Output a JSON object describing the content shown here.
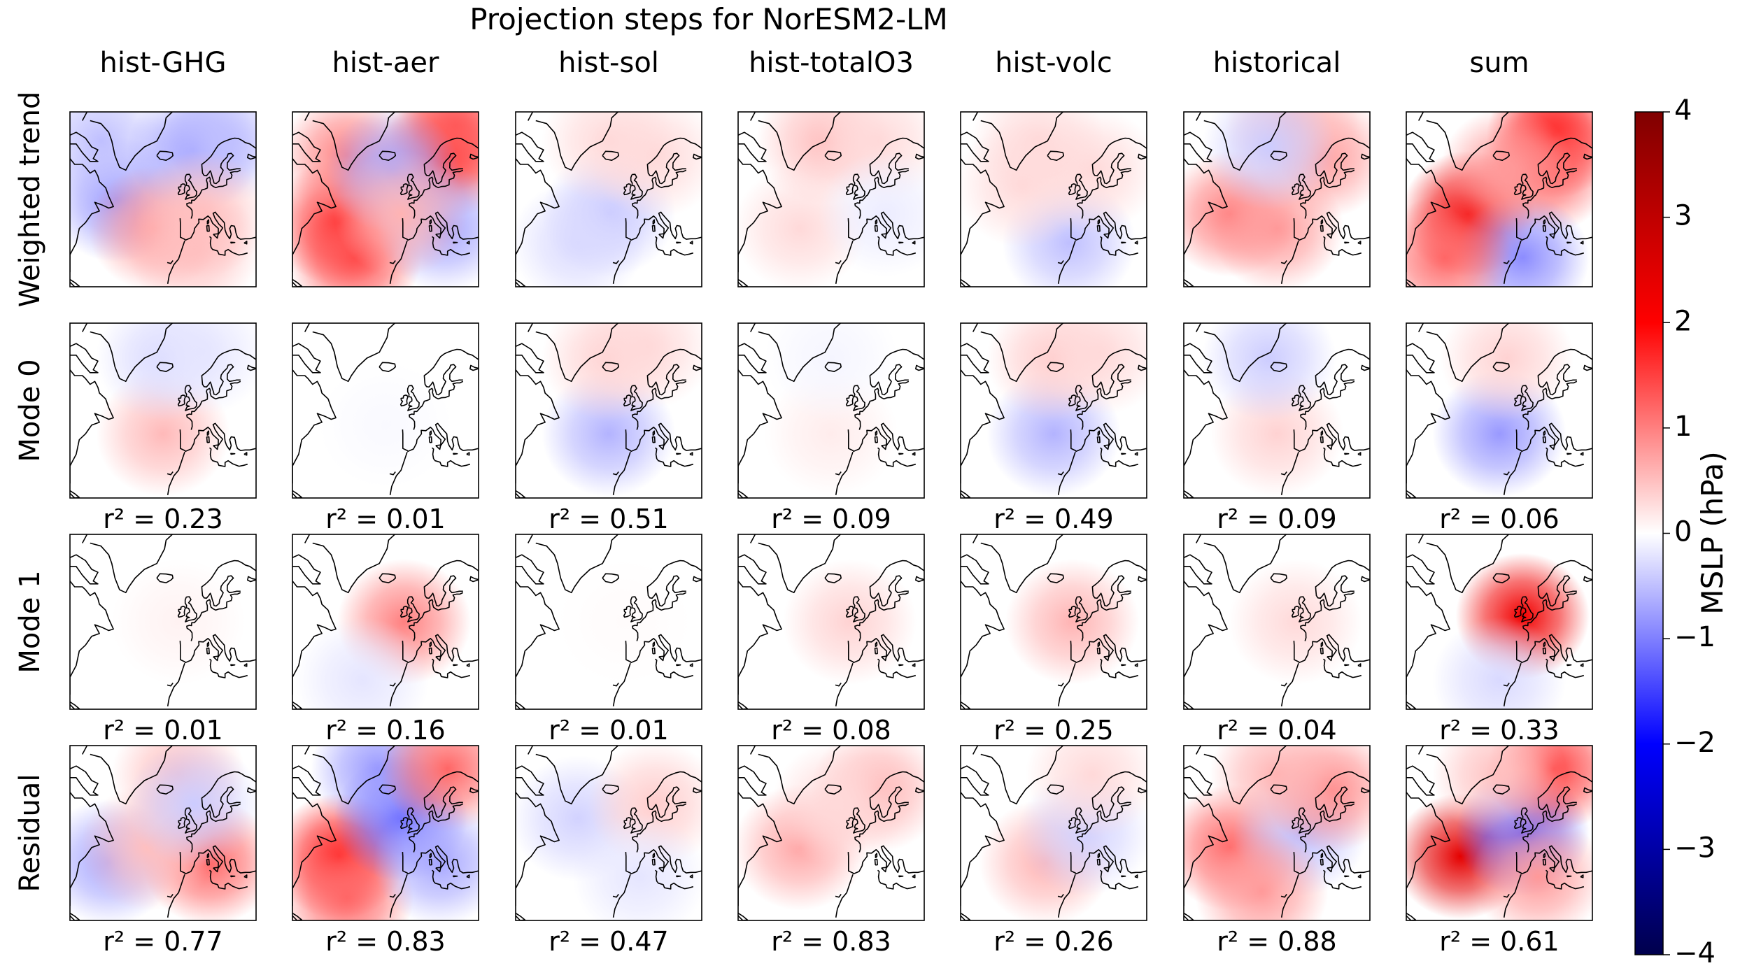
{
  "chart_data": {
    "type": "heatmap",
    "title": "Projection steps for NorESM2-LM",
    "columns": [
      "hist-GHG",
      "hist-aer",
      "hist-sol",
      "hist-totalO3",
      "hist-volc",
      "historical",
      "sum"
    ],
    "rows": [
      "Weighted trend",
      "Mode 0",
      "Mode 1",
      "Residual"
    ],
    "r2_labels": {
      "Mode 0": [
        "r² = 0.23",
        "r² = 0.01",
        "r² = 0.51",
        "r² = 0.09",
        "r² = 0.49",
        "r² = 0.09",
        "r² = 0.06"
      ],
      "Mode 1": [
        "r² = 0.01",
        "r² = 0.16",
        "r² = 0.01",
        "r² = 0.08",
        "r² = 0.25",
        "r² = 0.04",
        "r² = 0.33"
      ],
      "Residual": [
        "r² = 0.77",
        "r² = 0.83",
        "r² = 0.47",
        "r² = 0.83",
        "r² = 0.26",
        "r² = 0.88",
        "r² = 0.61"
      ]
    },
    "colorbar": {
      "label": "MSLP (hPa)",
      "vmin": -4,
      "vmax": 4,
      "ticks": [
        4,
        3,
        2,
        1,
        0,
        -1,
        -2,
        -3,
        -4
      ],
      "tick_labels": [
        "4",
        "3",
        "2",
        "1",
        "0",
        "−1",
        "−2",
        "−3",
        "−4"
      ],
      "colormap": "seismic",
      "colors": [
        "#00004c",
        "#0000ff",
        "#ffffff",
        "#ff0000",
        "#800000"
      ]
    },
    "anomaly_centers": [
      [
        [
          {
            "lon": -50,
            "lat": 50,
            "v": -0.8
          },
          {
            "lon": -60,
            "lat": 70,
            "v": -0.5
          },
          {
            "lon": -25,
            "lat": 40,
            "v": 0.8
          },
          {
            "lon": 0,
            "lat": 67,
            "v": -0.8
          },
          {
            "lon": 0,
            "lat": 33,
            "v": 0.5
          },
          {
            "lon": 20,
            "lat": 70,
            "v": -0.5
          },
          {
            "lon": 5,
            "lat": 45,
            "v": 0.5
          }
        ],
        [
          {
            "lon": -50,
            "lat": 42,
            "v": 1.6
          },
          {
            "lon": -45,
            "lat": 65,
            "v": 1.0
          },
          {
            "lon": -40,
            "lat": 30,
            "v": 1.4
          },
          {
            "lon": 20,
            "lat": 65,
            "v": 1.6
          },
          {
            "lon": 25,
            "lat": 75,
            "v": 1.3
          },
          {
            "lon": -15,
            "lat": 60,
            "v": -0.7
          },
          {
            "lon": 18,
            "lat": 40,
            "v": -0.7
          },
          {
            "lon": -10,
            "lat": 45,
            "v": 0.6
          }
        ],
        [
          {
            "lon": -20,
            "lat": 45,
            "v": -0.45
          },
          {
            "lon": -40,
            "lat": 35,
            "v": -0.3
          },
          {
            "lon": 10,
            "lat": 65,
            "v": 0.3
          },
          {
            "lon": -20,
            "lat": 70,
            "v": 0.3
          }
        ],
        [
          {
            "lon": -25,
            "lat": 70,
            "v": 0.5
          },
          {
            "lon": -40,
            "lat": 40,
            "v": 0.3
          },
          {
            "lon": 10,
            "lat": 70,
            "v": 0.3
          },
          {
            "lon": 15,
            "lat": 45,
            "v": -0.15
          }
        ],
        [
          {
            "lon": -10,
            "lat": 35,
            "v": -0.5
          },
          {
            "lon": 5,
            "lat": 60,
            "v": 0.3
          },
          {
            "lon": -40,
            "lat": 55,
            "v": 0.3
          },
          {
            "lon": -30,
            "lat": 70,
            "v": 0.3
          }
        ],
        [
          {
            "lon": -50,
            "lat": 45,
            "v": 1.0
          },
          {
            "lon": -20,
            "lat": 40,
            "v": 0.8
          },
          {
            "lon": 10,
            "lat": 65,
            "v": 0.8
          },
          {
            "lon": -10,
            "lat": 75,
            "v": 0.5
          },
          {
            "lon": -25,
            "lat": 68,
            "v": -0.4
          }
        ],
        [
          {
            "lon": -40,
            "lat": 45,
            "v": 2.2
          },
          {
            "lon": 15,
            "lat": 72,
            "v": 2.0
          },
          {
            "lon": 10,
            "lat": 60,
            "v": 1.2
          },
          {
            "lon": -5,
            "lat": 30,
            "v": -0.9
          },
          {
            "lon": -15,
            "lat": 60,
            "v": 0.8
          },
          {
            "lon": -55,
            "lat": 30,
            "v": 1.2
          }
        ]
      ],
      [
        [
          {
            "lon": -20,
            "lat": 42,
            "v": 0.55
          },
          {
            "lon": -20,
            "lat": 68,
            "v": -0.3
          },
          {
            "lon": 5,
            "lat": 70,
            "v": -0.2
          }
        ],
        [
          {
            "lon": -20,
            "lat": 45,
            "v": -0.05
          }
        ],
        [
          {
            "lon": -20,
            "lat": 42,
            "v": -0.6
          },
          {
            "lon": -20,
            "lat": 68,
            "v": 0.35
          },
          {
            "lon": 5,
            "lat": 72,
            "v": 0.3
          }
        ],
        [
          {
            "lon": -20,
            "lat": 42,
            "v": 0.15
          },
          {
            "lon": -20,
            "lat": 68,
            "v": -0.08
          }
        ],
        [
          {
            "lon": -20,
            "lat": 42,
            "v": -0.6
          },
          {
            "lon": -20,
            "lat": 68,
            "v": 0.4
          },
          {
            "lon": 10,
            "lat": 70,
            "v": 0.3
          }
        ],
        [
          {
            "lon": -20,
            "lat": 42,
            "v": 0.35
          },
          {
            "lon": -25,
            "lat": 68,
            "v": -0.4
          }
        ],
        [
          {
            "lon": -20,
            "lat": 42,
            "v": -0.8
          },
          {
            "lon": -15,
            "lat": 68,
            "v": 0.35
          }
        ]
      ],
      [
        [
          {
            "lon": -10,
            "lat": 50,
            "v": 0.1
          }
        ],
        [
          {
            "lon": -8,
            "lat": 50,
            "v": 1.0
          },
          {
            "lon": -35,
            "lat": 30,
            "v": -0.2
          }
        ],
        [
          {
            "lon": -10,
            "lat": 50,
            "v": 0.03
          }
        ],
        [
          {
            "lon": -8,
            "lat": 50,
            "v": 0.35
          }
        ],
        [
          {
            "lon": -8,
            "lat": 50,
            "v": 0.6
          }
        ],
        [
          {
            "lon": -8,
            "lat": 50,
            "v": 0.3
          }
        ],
        [
          {
            "lon": -5,
            "lat": 52,
            "v": 2.2
          },
          {
            "lon": -20,
            "lat": 30,
            "v": -0.3
          }
        ]
      ],
      [
        [
          {
            "lon": -55,
            "lat": 40,
            "v": -0.7
          },
          {
            "lon": 10,
            "lat": 40,
            "v": 1.2
          },
          {
            "lon": -30,
            "lat": 45,
            "v": 0.5
          },
          {
            "lon": -10,
            "lat": 70,
            "v": 0.5
          },
          {
            "lon": 0,
            "lat": 60,
            "v": -0.4
          }
        ],
        [
          {
            "lon": -50,
            "lat": 42,
            "v": 1.8
          },
          {
            "lon": -45,
            "lat": 28,
            "v": 1.2
          },
          {
            "lon": -10,
            "lat": 55,
            "v": -1.2
          },
          {
            "lon": -25,
            "lat": 72,
            "v": -0.8
          },
          {
            "lon": 20,
            "lat": 72,
            "v": 1.2
          },
          {
            "lon": 15,
            "lat": 40,
            "v": -0.7
          }
        ],
        [
          {
            "lon": -40,
            "lat": 55,
            "v": -0.35
          },
          {
            "lon": 10,
            "lat": 60,
            "v": 0.4
          },
          {
            "lon": 0,
            "lat": 35,
            "v": -0.2
          }
        ],
        [
          {
            "lon": -40,
            "lat": 45,
            "v": 0.7
          },
          {
            "lon": 10,
            "lat": 65,
            "v": 0.6
          },
          {
            "lon": -15,
            "lat": 60,
            "v": 0.3
          }
        ],
        [
          {
            "lon": -25,
            "lat": 40,
            "v": 0.6
          },
          {
            "lon": 0,
            "lat": 50,
            "v": -0.35
          },
          {
            "lon": 5,
            "lat": 70,
            "v": 0.3
          }
        ],
        [
          {
            "lon": -50,
            "lat": 45,
            "v": 1.2
          },
          {
            "lon": -5,
            "lat": 50,
            "v": -0.5
          },
          {
            "lon": 15,
            "lat": 65,
            "v": 0.9
          },
          {
            "lon": -20,
            "lat": 70,
            "v": 0.6
          },
          {
            "lon": -30,
            "lat": 30,
            "v": 0.8
          }
        ],
        [
          {
            "lon": -45,
            "lat": 42,
            "v": 2.4
          },
          {
            "lon": -5,
            "lat": 50,
            "v": -1.3
          },
          {
            "lon": 15,
            "lat": 72,
            "v": 1.5
          },
          {
            "lon": 5,
            "lat": 35,
            "v": 0.8
          },
          {
            "lon": -20,
            "lat": 70,
            "v": 0.5
          }
        ]
      ]
    ]
  }
}
